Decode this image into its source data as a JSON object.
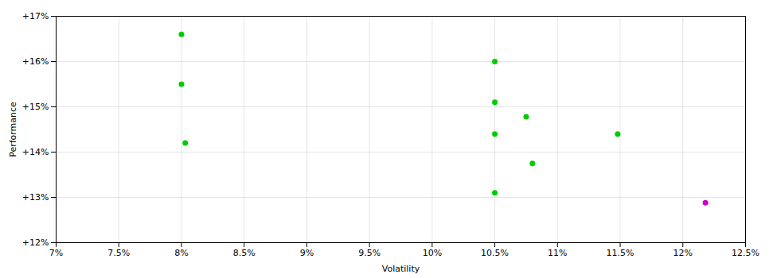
{
  "chart_data": {
    "type": "scatter",
    "xlabel": "Volatility",
    "ylabel": "Performance",
    "series": [
      {
        "color": "#00cc00",
        "x": [
          0.08,
          0.08,
          0.0803,
          0.105,
          0.105,
          0.1075,
          0.105,
          0.108,
          0.105,
          0.1148
        ],
        "values": [
          0.166,
          0.155,
          0.142,
          0.16,
          0.151,
          0.1478,
          0.144,
          0.1375,
          0.131,
          0.144
        ]
      },
      {
        "color": "#cc00cc",
        "x": [
          0.1218
        ],
        "values": [
          0.1288
        ]
      }
    ],
    "xlim": [
      0.07,
      0.125
    ],
    "ylim": [
      0.12,
      0.17
    ],
    "xticks": [
      {
        "value": 0.07,
        "label": "7%"
      },
      {
        "value": 0.075,
        "label": "7.5%"
      },
      {
        "value": 0.08,
        "label": "8%"
      },
      {
        "value": 0.085,
        "label": "8.5%"
      },
      {
        "value": 0.09,
        "label": "9%"
      },
      {
        "value": 0.095,
        "label": "9.5%"
      },
      {
        "value": 0.1,
        "label": "10%"
      },
      {
        "value": 0.105,
        "label": "10.5%"
      },
      {
        "value": 0.11,
        "label": "11%"
      },
      {
        "value": 0.115,
        "label": "11.5%"
      },
      {
        "value": 0.12,
        "label": "12%"
      },
      {
        "value": 0.125,
        "label": "12.5%"
      }
    ],
    "yticks": [
      {
        "value": 0.12,
        "label": "+12%"
      },
      {
        "value": 0.13,
        "label": "+13%"
      },
      {
        "value": 0.14,
        "label": "+14%"
      },
      {
        "value": 0.15,
        "label": "+15%"
      },
      {
        "value": 0.16,
        "label": "+16%"
      },
      {
        "value": 0.17,
        "label": "+17%"
      }
    ],
    "grid": true
  }
}
